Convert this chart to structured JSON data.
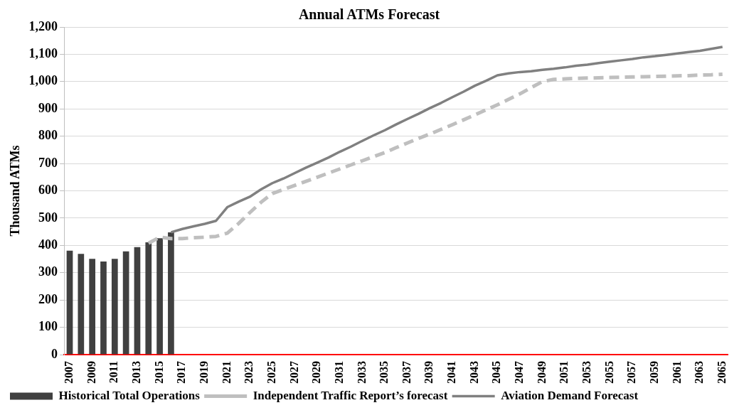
{
  "chart_data": {
    "type": "bar",
    "title": "Annual ATMs Forecast",
    "ylabel": "Thousand ATMs",
    "categories": [
      "2007",
      null,
      "2009",
      null,
      "2011",
      null,
      "2013",
      null,
      "2015",
      null,
      "2017",
      null,
      "2019",
      null,
      "2021",
      null,
      "2023",
      null,
      "2025",
      null,
      "2027",
      null,
      "2029",
      null,
      "2031",
      null,
      "2033",
      null,
      "2035",
      null,
      "2037",
      null,
      "2039",
      null,
      "2041",
      null,
      "2043",
      null,
      "2045",
      null,
      "2047",
      null,
      "2049",
      null,
      "2051",
      null,
      "2053",
      null,
      "2055",
      null,
      "2057",
      null,
      "2059",
      null,
      "2061",
      null,
      "2063",
      null,
      "2065"
    ],
    "series": [
      {
        "name": "Historical Total Operations",
        "color": "#404040",
        "values": [
          381,
          369,
          351,
          341,
          351,
          378,
          394,
          411,
          426,
          448,
          null,
          null,
          null,
          null,
          null,
          null,
          null,
          null,
          null,
          null,
          null,
          null,
          null,
          null,
          null,
          null,
          null,
          null,
          null,
          null,
          null,
          null,
          null,
          null,
          null,
          null,
          null,
          null,
          null,
          null,
          null,
          null,
          null,
          null,
          null,
          null,
          null,
          null,
          null,
          null,
          null,
          null,
          null,
          null,
          null,
          null,
          null,
          null,
          null
        ]
      },
      {
        "name": "Independent Traffic Report’s forecast",
        "type": "line",
        "line_style": "dashed",
        "color": "#bfbfbf",
        "values": [
          null,
          null,
          null,
          null,
          null,
          null,
          null,
          408,
          430,
          425,
          425,
          428,
          430,
          433,
          445,
          480,
          520,
          558,
          590,
          605,
          620,
          635,
          650,
          665,
          680,
          695,
          710,
          725,
          740,
          758,
          775,
          792,
          808,
          825,
          842,
          860,
          878,
          897,
          915,
          935,
          955,
          978,
          1000,
          1008,
          1010,
          1012,
          1013,
          1014,
          1015,
          1016,
          1017,
          1018,
          1019,
          1020,
          1021,
          1022,
          1024,
          1025,
          1027
        ]
      },
      {
        "name": "Aviation Demand Forecast",
        "type": "line",
        "line_style": "solid",
        "color": "#808080",
        "values": [
          null,
          null,
          null,
          null,
          null,
          null,
          null,
          null,
          null,
          448,
          460,
          470,
          479,
          490,
          540,
          560,
          578,
          605,
          628,
          645,
          665,
          685,
          703,
          722,
          743,
          762,
          783,
          803,
          822,
          843,
          863,
          882,
          903,
          922,
          943,
          963,
          985,
          1003,
          1023,
          1030,
          1035,
          1038,
          1043,
          1047,
          1052,
          1058,
          1062,
          1068,
          1073,
          1078,
          1083,
          1089,
          1093,
          1098,
          1103,
          1108,
          1113,
          1120,
          1127
        ]
      }
    ],
    "ylim": [
      0,
      1200
    ],
    "yticks": [
      0,
      100,
      200,
      300,
      400,
      500,
      600,
      700,
      800,
      900,
      {
        "value": 1000,
        "label": "1,000"
      },
      {
        "value": 1100,
        "label": "1,100"
      },
      {
        "value": 1200,
        "label": "1,200"
      }
    ],
    "grid": "y",
    "legend": "bottom",
    "marker": "none"
  }
}
